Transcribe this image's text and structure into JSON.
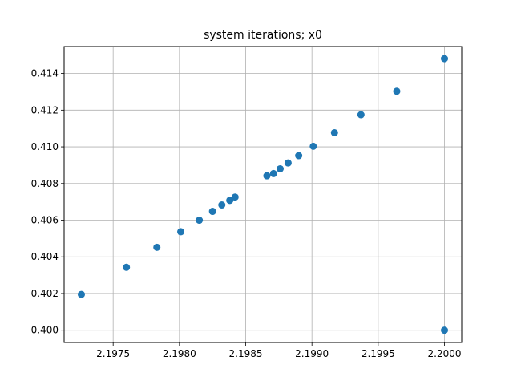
{
  "chart_data": {
    "type": "scatter",
    "title": "system iterations; x0",
    "xlabel": "",
    "ylabel": "",
    "xlim": [
      2.19713,
      2.20013
    ],
    "ylim": [
      0.39933,
      0.41547
    ],
    "xticks": [
      2.1975,
      2.198,
      2.1985,
      2.199,
      2.1995,
      2.2
    ],
    "xtick_labels": [
      "2.1975",
      "2.1980",
      "2.1985",
      "2.1990",
      "2.1995",
      "2.2000"
    ],
    "yticks": [
      0.4,
      0.402,
      0.404,
      0.406,
      0.408,
      0.41,
      0.412,
      0.414
    ],
    "ytick_labels": [
      "0.400",
      "0.402",
      "0.404",
      "0.406",
      "0.408",
      "0.410",
      "0.412",
      "0.414"
    ],
    "grid": true,
    "marker_color": "#1f77b4",
    "points": [
      {
        "x": 2.2,
        "y": 0.4
      },
      {
        "x": 2.19726,
        "y": 0.40195
      },
      {
        "x": 2.1976,
        "y": 0.40343
      },
      {
        "x": 2.19783,
        "y": 0.40452
      },
      {
        "x": 2.19801,
        "y": 0.40537
      },
      {
        "x": 2.19815,
        "y": 0.406
      },
      {
        "x": 2.19825,
        "y": 0.40648
      },
      {
        "x": 2.19832,
        "y": 0.40683
      },
      {
        "x": 2.19838,
        "y": 0.40708
      },
      {
        "x": 2.19842,
        "y": 0.40726
      },
      {
        "x": 2.19866,
        "y": 0.40842
      },
      {
        "x": 2.19871,
        "y": 0.40854
      },
      {
        "x": 2.19876,
        "y": 0.4088
      },
      {
        "x": 2.19882,
        "y": 0.40912
      },
      {
        "x": 2.1989,
        "y": 0.40952
      },
      {
        "x": 2.19901,
        "y": 0.41003
      },
      {
        "x": 2.19917,
        "y": 0.41077
      },
      {
        "x": 2.19937,
        "y": 0.41175
      },
      {
        "x": 2.19964,
        "y": 0.41303
      },
      {
        "x": 2.2,
        "y": 0.41481
      }
    ]
  }
}
